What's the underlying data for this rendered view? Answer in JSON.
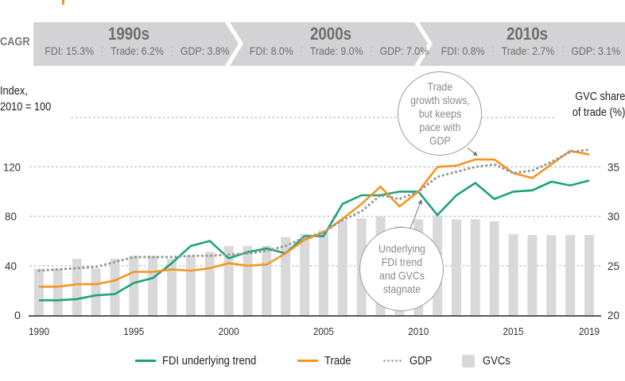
{
  "header": {
    "cagr_label": "CAGR",
    "periods": [
      {
        "decade": "1990s",
        "fdi": "FDI: 15.3%",
        "trade": "Trade: 6.2%",
        "gdp": "GDP: 3.8%"
      },
      {
        "decade": "2000s",
        "fdi": "FDI: 8.0%",
        "trade": "Trade: 9.0%",
        "gdp": "GDP: 7.0%"
      },
      {
        "decade": "2010s",
        "fdi": "FDI: 0.8%",
        "trade": "Trade: 2.7%",
        "gdp": "GDP: 3.1%"
      }
    ]
  },
  "annotations": {
    "trade_callout": "Trade\ngrowth slows,\nbut keeps\npace with\nGDP",
    "fdi_callout": "Underlying\nFDI trend\nand GVCs\nstagnate"
  },
  "colors": {
    "fdi": "#1aa37a",
    "trade": "#f7941d",
    "gdp": "#999999",
    "gvc": "#d9d9db",
    "banner": "#d3d3d5",
    "accent": "#f7941d"
  },
  "chart_data": {
    "type": "line",
    "title": "",
    "ylabel": "Index,\n2010 = 100",
    "ylabel_left_lines": [
      "Index,",
      "2010 = 100"
    ],
    "ylabel_right_lines": [
      "GVC share",
      "of trade (%)"
    ],
    "xlabel": "",
    "x": [
      1990,
      1991,
      1992,
      1993,
      1994,
      1995,
      1996,
      1997,
      1998,
      1999,
      2000,
      2001,
      2002,
      2003,
      2004,
      2005,
      2006,
      2007,
      2008,
      2009,
      2010,
      2011,
      2012,
      2013,
      2014,
      2015,
      2016,
      2017,
      2018,
      2019
    ],
    "x_tick_labels": [
      "1990",
      "1995",
      "2000",
      "2005",
      "2010",
      "2015",
      "2019"
    ],
    "x_ticks": [
      1990,
      1995,
      2000,
      2005,
      2010,
      2015,
      2019
    ],
    "ylim_left": [
      0,
      160
    ],
    "y_ticks_left": [
      0,
      40,
      80,
      120
    ],
    "ylim_right": [
      20,
      40
    ],
    "y_ticks_right": [
      20,
      25,
      30,
      35
    ],
    "grid": "dotted horizontal",
    "legend_position": "bottom",
    "series": [
      {
        "name": "FDI underlying trend",
        "axis": "left",
        "style": "line",
        "values": [
          12,
          12,
          13,
          16,
          17,
          26,
          30,
          42,
          56,
          60,
          46,
          51,
          54,
          50,
          64,
          64,
          90,
          97,
          97,
          100,
          100,
          81,
          97,
          107,
          94,
          100,
          101,
          108,
          105,
          109
        ]
      },
      {
        "name": "Trade",
        "axis": "left",
        "style": "line",
        "values": [
          23,
          23,
          25,
          25,
          28,
          35,
          35,
          37,
          36,
          38,
          42,
          40,
          41,
          50,
          61,
          67,
          78,
          90,
          104,
          88,
          100,
          120,
          121,
          126,
          126,
          115,
          111,
          122,
          133,
          130
        ]
      },
      {
        "name": "GDP",
        "axis": "left",
        "style": "dotted",
        "values": [
          36,
          37,
          38,
          39,
          43,
          47,
          47,
          47,
          48,
          48,
          49,
          50,
          52,
          56,
          63,
          67,
          77,
          84,
          97,
          94,
          100,
          112,
          116,
          120,
          122,
          115,
          117,
          124,
          132,
          134
        ]
      },
      {
        "name": "GVCs",
        "axis": "right",
        "style": "bar",
        "values": [
          24.7,
          24.7,
          25.7,
          24.7,
          25.7,
          26.0,
          26.0,
          25.7,
          26.0,
          26.4,
          27.0,
          27.0,
          27.0,
          27.9,
          28.2,
          28.6,
          29.6,
          29.8,
          30.0,
          29.0,
          29.7,
          30.1,
          29.7,
          29.7,
          29.5,
          28.2,
          28.1,
          28.1,
          28.1,
          28.1
        ]
      }
    ]
  }
}
